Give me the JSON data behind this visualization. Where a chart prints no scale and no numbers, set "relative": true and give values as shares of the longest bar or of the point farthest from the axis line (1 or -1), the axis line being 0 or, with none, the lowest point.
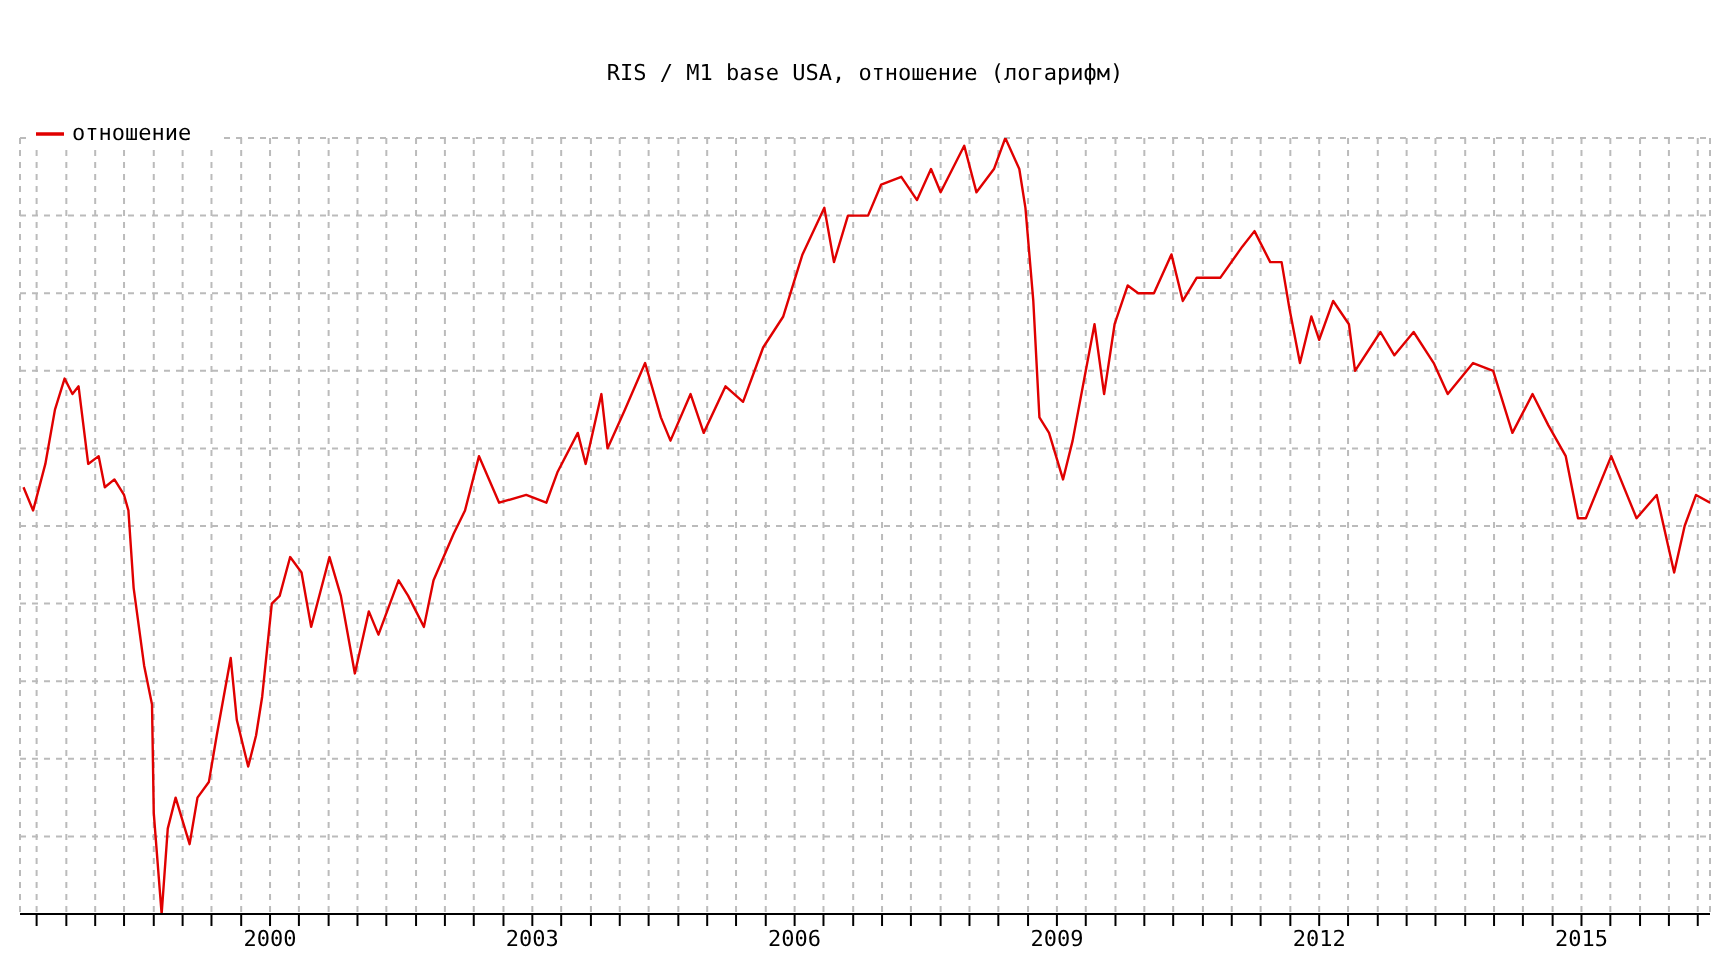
{
  "chart_data": {
    "type": "line",
    "title": "RIS / M1 base USA, отношение (логарифм)",
    "relative": true,
    "grid": true,
    "legend": "top left",
    "marker": "none",
    "line_style": "solid",
    "xlim": [
      1997.14,
      2016.47
    ],
    "xticks": [
      {
        "value": 1997.33,
        "label": null
      },
      {
        "value": 1997.67,
        "label": null
      },
      {
        "value": 1998,
        "label": null
      },
      {
        "value": 1998.33,
        "label": null
      },
      {
        "value": 1998.67,
        "label": null
      },
      {
        "value": 1999,
        "label": null
      },
      {
        "value": 1999.33,
        "label": null
      },
      {
        "value": 1999.67,
        "label": null
      },
      2000,
      {
        "value": 2000.33,
        "label": null
      },
      {
        "value": 2000.67,
        "label": null
      },
      {
        "value": 2001,
        "label": null
      },
      {
        "value": 2001.33,
        "label": null
      },
      {
        "value": 2001.67,
        "label": null
      },
      {
        "value": 2002,
        "label": null
      },
      {
        "value": 2002.33,
        "label": null
      },
      {
        "value": 2002.67,
        "label": null
      },
      2003,
      {
        "value": 2003.33,
        "label": null
      },
      {
        "value": 2003.67,
        "label": null
      },
      {
        "value": 2004,
        "label": null
      },
      {
        "value": 2004.33,
        "label": null
      },
      {
        "value": 2004.67,
        "label": null
      },
      {
        "value": 2005,
        "label": null
      },
      {
        "value": 2005.33,
        "label": null
      },
      {
        "value": 2005.67,
        "label": null
      },
      2006,
      {
        "value": 2006.33,
        "label": null
      },
      {
        "value": 2006.67,
        "label": null
      },
      {
        "value": 2007,
        "label": null
      },
      {
        "value": 2007.33,
        "label": null
      },
      {
        "value": 2007.67,
        "label": null
      },
      {
        "value": 2008,
        "label": null
      },
      {
        "value": 2008.33,
        "label": null
      },
      {
        "value": 2008.67,
        "label": null
      },
      2009,
      {
        "value": 2009.33,
        "label": null
      },
      {
        "value": 2009.67,
        "label": null
      },
      {
        "value": 2010,
        "label": null
      },
      {
        "value": 2010.33,
        "label": null
      },
      {
        "value": 2010.67,
        "label": null
      },
      {
        "value": 2011,
        "label": null
      },
      {
        "value": 2011.33,
        "label": null
      },
      {
        "value": 2011.67,
        "label": null
      },
      2012,
      {
        "value": 2012.33,
        "label": null
      },
      {
        "value": 2012.67,
        "label": null
      },
      {
        "value": 2013,
        "label": null
      },
      {
        "value": 2013.33,
        "label": null
      },
      {
        "value": 2013.67,
        "label": null
      },
      {
        "value": 2014,
        "label": null
      },
      {
        "value": 2014.33,
        "label": null
      },
      {
        "value": 2014.67,
        "label": null
      },
      2015,
      {
        "value": 2015.33,
        "label": null
      },
      {
        "value": 2015.67,
        "label": null
      },
      {
        "value": 2016,
        "label": null
      },
      {
        "value": 2016.33,
        "label": null
      }
    ],
    "series": [
      {
        "name": "отношение",
        "color": "#e00000",
        "x": [
          1997.18,
          1997.29,
          1997.43,
          1997.54,
          1997.65,
          1997.74,
          1997.81,
          1997.92,
          1998.04,
          1998.11,
          1998.22,
          1998.33,
          1998.38,
          1998.44,
          1998.56,
          1998.65,
          1998.67,
          1998.76,
          1998.83,
          1998.92,
          1999.08,
          1999.17,
          1999.3,
          1999.39,
          1999.55,
          1999.62,
          1999.75,
          1999.84,
          1999.91,
          2000.02,
          2000.11,
          2000.23,
          2000.36,
          2000.47,
          2000.68,
          2000.81,
          2000.97,
          2001.13,
          2001.24,
          2001.47,
          2001.58,
          2001.76,
          2001.87,
          2002.1,
          2002.23,
          2002.39,
          2002.62,
          2002.93,
          2003.16,
          2003.29,
          2003.52,
          2003.61,
          2003.79,
          2003.86,
          2004.06,
          2004.29,
          2004.47,
          2004.58,
          2004.81,
          2004.96,
          2005.21,
          2005.41,
          2005.64,
          2005.87,
          2006.09,
          2006.34,
          2006.45,
          2006.61,
          2006.84,
          2006.99,
          2007.22,
          2007.4,
          2007.56,
          2007.67,
          2007.94,
          2008.08,
          2008.28,
          2008.41,
          2008.57,
          2008.64,
          2008.73,
          2008.8,
          2008.91,
          2009.07,
          2009.18,
          2009.43,
          2009.54,
          2009.66,
          2009.81,
          2009.93,
          2010.11,
          2010.31,
          2010.44,
          2010.6,
          2010.87,
          2011.12,
          2011.26,
          2011.44,
          2011.57,
          2011.66,
          2011.78,
          2011.91,
          2012.0,
          2012.16,
          2012.34,
          2012.41,
          2012.7,
          2012.86,
          2013.08,
          2013.31,
          2013.47,
          2013.76,
          2013.99,
          2014.21,
          2014.44,
          2014.62,
          2014.82,
          2014.96,
          2015.05,
          2015.34,
          2015.63,
          2015.86,
          2016.06,
          2016.18,
          2016.31,
          2016.47
        ],
        "values": [
          0.55,
          0.52,
          0.58,
          0.65,
          0.69,
          0.67,
          0.68,
          0.58,
          0.59,
          0.55,
          0.56,
          0.54,
          0.52,
          0.42,
          0.32,
          0.27,
          0.13,
          0,
          0.11,
          0.15,
          0.09,
          0.15,
          0.17,
          0.23,
          0.33,
          0.25,
          0.19,
          0.23,
          0.28,
          0.4,
          0.41,
          0.46,
          0.44,
          0.37,
          0.46,
          0.41,
          0.31,
          0.39,
          0.36,
          0.43,
          0.41,
          0.37,
          0.43,
          0.49,
          0.52,
          0.59,
          0.53,
          0.54,
          0.53,
          0.57,
          0.62,
          0.58,
          0.67,
          0.6,
          0.65,
          0.71,
          0.64,
          0.61,
          0.67,
          0.62,
          0.68,
          0.66,
          0.73,
          0.77,
          0.85,
          0.91,
          0.84,
          0.9,
          0.9,
          0.94,
          0.95,
          0.92,
          0.96,
          0.93,
          0.99,
          0.93,
          0.96,
          1,
          0.96,
          0.91,
          0.79,
          0.64,
          0.62,
          0.56,
          0.61,
          0.76,
          0.67,
          0.76,
          0.81,
          0.8,
          0.8,
          0.85,
          0.79,
          0.82,
          0.82,
          0.86,
          0.88,
          0.84,
          0.84,
          0.78,
          0.71,
          0.77,
          0.74,
          0.79,
          0.76,
          0.7,
          0.75,
          0.72,
          0.75,
          0.71,
          0.67,
          0.71,
          0.7,
          0.62,
          0.67,
          0.63,
          0.59,
          0.51,
          0.51,
          0.59,
          0.51,
          0.54,
          0.44,
          0.5,
          0.54,
          0.53
        ]
      }
    ]
  }
}
